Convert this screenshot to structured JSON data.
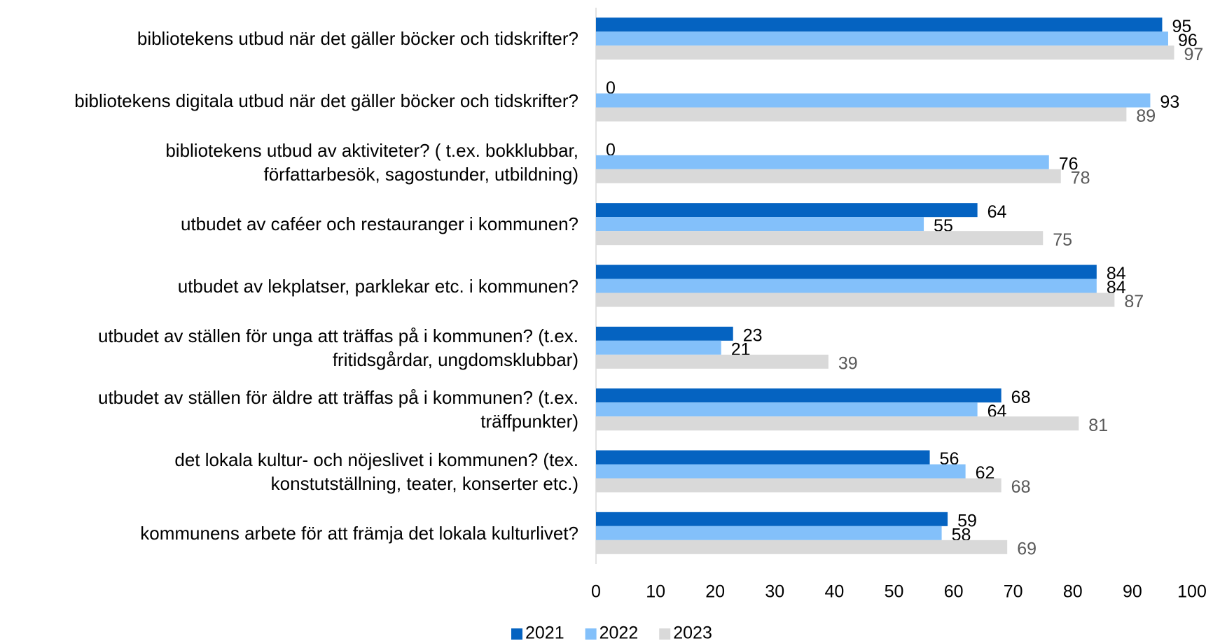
{
  "chart_data": {
    "type": "bar",
    "orientation": "horizontal",
    "categories": [
      "bibliotekens utbud när det gäller böcker och tidskrifter?",
      "bibliotekens digitala utbud när det gäller böcker och tidskrifter?",
      "bibliotekens utbud av aktiviteter? ( t.ex. bokklubbar,\nförfattarbesök, sagostunder, utbildning)",
      "utbudet av caféer och restauranger i kommunen?",
      "utbudet av lekplatser, parklekar etc. i kommunen?",
      "utbudet av ställen för unga att träffas på i kommunen? (t.ex.\nfritidsgårdar, ungdomsklubbar)",
      "utbudet av ställen för äldre att träffas på i kommunen? (t.ex.\nträffpunkter)",
      "det lokala kultur- och nöjeslivet i kommunen? (tex.\nkonstutställning, teater, konserter etc.)",
      "kommunens arbete för att främja det lokala kulturlivet?"
    ],
    "series": [
      {
        "name": "2021",
        "color": "#0563c1",
        "values": [
          95,
          0,
          0,
          64,
          84,
          23,
          68,
          56,
          59
        ]
      },
      {
        "name": "2022",
        "color": "#83c0fa",
        "values": [
          96,
          93,
          76,
          55,
          84,
          21,
          64,
          62,
          58
        ]
      },
      {
        "name": "2023",
        "color": "#d9d9d9",
        "values": [
          97,
          89,
          78,
          75,
          87,
          39,
          81,
          68,
          69
        ]
      }
    ],
    "xlim": [
      0,
      100
    ],
    "xticks": [
      0,
      10,
      20,
      30,
      40,
      50,
      60,
      70,
      80,
      90,
      100
    ],
    "legend": "bottom",
    "grid": false
  }
}
